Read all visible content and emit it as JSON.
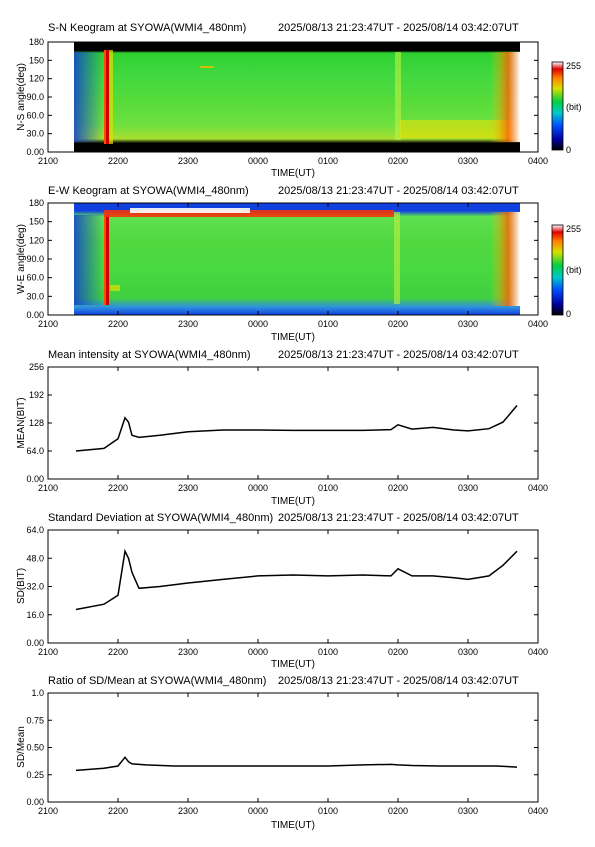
{
  "chart_data": [
    {
      "type": "heatmap",
      "title": "S-N Keogram at SYOWA(WMI4_480nm)",
      "time_range": "2025/08/13 21:23:47UT - 2025/08/14 03:42:07UT",
      "xlabel": "TIME(UT)",
      "ylabel": "N-S angle(deg)",
      "x_ticks": [
        "2100",
        "2200",
        "2300",
        "0000",
        "0100",
        "0200",
        "0300",
        "0400"
      ],
      "y_ticks": [
        "0.00",
        "30.0",
        "60.0",
        "90.0",
        "120",
        "150",
        "180"
      ],
      "ylim": [
        0,
        180
      ],
      "colorbar": {
        "max": "255",
        "unit": "(bit)",
        "min": "0"
      }
    },
    {
      "type": "heatmap",
      "title": "E-W Keogram at SYOWA(WMI4_480nm)",
      "time_range": "2025/08/13 21:23:47UT - 2025/08/14 03:42:07UT",
      "xlabel": "TIME(UT)",
      "ylabel": "W-E angle(deg)",
      "x_ticks": [
        "2100",
        "2200",
        "2300",
        "0000",
        "0100",
        "0200",
        "0300",
        "0400"
      ],
      "y_ticks": [
        "0.00",
        "30.0",
        "60.0",
        "90.0",
        "120",
        "150",
        "180"
      ],
      "ylim": [
        0,
        180
      ],
      "colorbar": {
        "max": "255",
        "unit": "(bit)",
        "min": "0"
      }
    },
    {
      "type": "line",
      "title": "Mean intensity at SYOWA(WMI4_480nm)",
      "time_range": "2025/08/13 21:23:47UT - 2025/08/14 03:42:07UT",
      "xlabel": "TIME(UT)",
      "ylabel": "MEAN(BIT)",
      "x_ticks": [
        "2100",
        "2200",
        "2300",
        "0000",
        "0100",
        "0200",
        "0300",
        "0400"
      ],
      "y_ticks": [
        "0.00",
        "64.0",
        "128",
        "192",
        "256"
      ],
      "ylim": [
        0,
        256
      ],
      "series": [
        {
          "x_hours": [
            21.4,
            21.8,
            22.0,
            22.1,
            22.15,
            22.2,
            22.3,
            22.6,
            23.0,
            23.5,
            24.0,
            24.5,
            25.0,
            25.5,
            25.9,
            26.0,
            26.2,
            26.5,
            26.8,
            27.0,
            27.3,
            27.5,
            27.7
          ],
          "values": [
            64,
            70,
            92,
            140,
            130,
            100,
            95,
            100,
            108,
            112,
            112,
            111,
            111,
            111,
            113,
            124,
            114,
            118,
            112,
            110,
            115,
            130,
            168
          ]
        }
      ]
    },
    {
      "type": "line",
      "title": "Standard Deviation at SYOWA(WMI4_480nm)",
      "time_range": "2025/08/13 21:23:47UT - 2025/08/14 03:42:07UT",
      "xlabel": "TIME(UT)",
      "ylabel": "SD(BIT)",
      "x_ticks": [
        "2100",
        "2200",
        "2300",
        "0000",
        "0100",
        "0200",
        "0300",
        "0400"
      ],
      "y_ticks": [
        "0.00",
        "16.0",
        "32.0",
        "48.0",
        "64.0"
      ],
      "ylim": [
        0,
        64
      ],
      "series": [
        {
          "x_hours": [
            21.4,
            21.8,
            22.0,
            22.1,
            22.15,
            22.2,
            22.3,
            22.6,
            23.0,
            23.5,
            24.0,
            24.5,
            25.0,
            25.5,
            25.9,
            26.0,
            26.2,
            26.5,
            26.8,
            27.0,
            27.3,
            27.5,
            27.7
          ],
          "values": [
            19,
            22,
            27,
            52,
            48,
            40,
            31,
            32,
            34,
            36,
            38,
            38.5,
            38,
            38.5,
            38,
            42,
            38,
            38,
            37,
            36,
            38,
            44,
            52
          ]
        }
      ]
    },
    {
      "type": "line",
      "title": "Ratio of SD/Mean at SYOWA(WMI4_480nm)",
      "time_range": "2025/08/13 21:23:47UT - 2025/08/14 03:42:07UT",
      "xlabel": "TIME(UT)",
      "ylabel": "SD/Mean",
      "x_ticks": [
        "2100",
        "2200",
        "2300",
        "0000",
        "0100",
        "0200",
        "0300",
        "0400"
      ],
      "y_ticks": [
        "0.00",
        "0.25",
        "0.50",
        "0.75",
        "1.0"
      ],
      "ylim": [
        0,
        1
      ],
      "series": [
        {
          "x_hours": [
            21.4,
            21.8,
            22.0,
            22.1,
            22.15,
            22.2,
            22.4,
            22.8,
            23.5,
            24.0,
            24.5,
            25.0,
            25.5,
            25.9,
            26.0,
            26.2,
            26.6,
            27.0,
            27.4,
            27.7
          ],
          "values": [
            0.29,
            0.31,
            0.33,
            0.41,
            0.37,
            0.35,
            0.34,
            0.33,
            0.33,
            0.33,
            0.33,
            0.33,
            0.34,
            0.345,
            0.34,
            0.335,
            0.33,
            0.33,
            0.33,
            0.32
          ]
        }
      ]
    }
  ]
}
